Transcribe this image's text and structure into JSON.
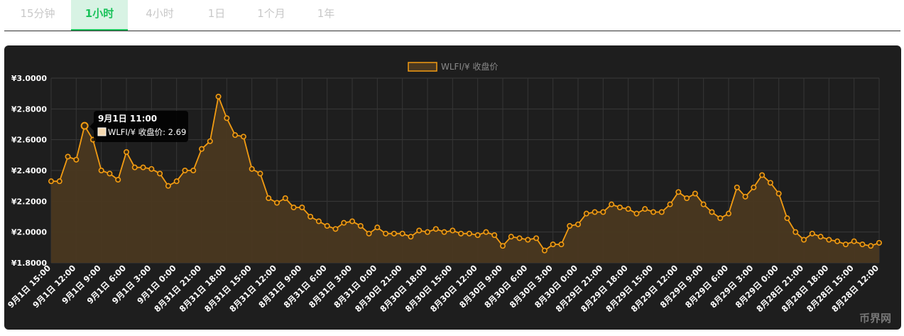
{
  "tabs": [
    {
      "label": "15分钟",
      "active": false
    },
    {
      "label": "1小时",
      "active": true
    },
    {
      "label": "4小时",
      "active": false
    },
    {
      "label": "1日",
      "active": false
    },
    {
      "label": "1个月",
      "active": false
    },
    {
      "label": "1年",
      "active": false
    }
  ],
  "colors": {
    "line": "#f39c12",
    "fill": "#4a3820",
    "accent": "#19c25a",
    "panel": "#1e1e1e"
  },
  "tooltip": {
    "title": "9月1日 11:00",
    "body": "WLFI/¥ 收盘价: 2.69"
  },
  "watermark": "币界网",
  "chart_data": {
    "type": "area",
    "legend": "WLFI/¥ 收盘价",
    "legend_position": "top-center",
    "grid": true,
    "ylim": [
      1.8,
      3.0
    ],
    "y_ticks": [
      "¥3.0000",
      "¥2.8000",
      "¥2.6000",
      "¥2.4000",
      "¥2.2000",
      "¥2.0000",
      "¥1.8000"
    ],
    "x_tick_labels": [
      "9月1日 15:00",
      "9月1日 12:00",
      "9月1日 9:00",
      "9月1日 6:00",
      "9月1日 3:00",
      "9月1日 0:00",
      "8月31日 21:00",
      "8月31日 18:00",
      "8月31日 15:00",
      "8月31日 12:00",
      "8月31日 9:00",
      "8月31日 6:00",
      "8月31日 3:00",
      "8月31日 0:00",
      "8月30日 21:00",
      "8月30日 18:00",
      "8月30日 15:00",
      "8月30日 12:00",
      "8月30日 9:00",
      "8月30日 6:00",
      "8月30日 3:00",
      "8月30日 0:00",
      "8月29日 21:00",
      "8月29日 18:00",
      "8月29日 15:00",
      "8月29日 12:00",
      "8月29日 9:00",
      "8月29日 6:00",
      "8月29日 3:00",
      "8月29日 0:00",
      "8月28日 21:00",
      "8月28日 18:00",
      "8月28日 15:00",
      "8月28日 12:00"
    ],
    "series": [
      {
        "name": "WLFI/¥ 收盘价",
        "values": [
          2.33,
          2.33,
          2.49,
          2.47,
          2.69,
          2.6,
          2.4,
          2.38,
          2.34,
          2.52,
          2.42,
          2.42,
          2.41,
          2.38,
          2.3,
          2.33,
          2.4,
          2.4,
          2.54,
          2.59,
          2.88,
          2.74,
          2.63,
          2.62,
          2.41,
          2.38,
          2.22,
          2.19,
          2.22,
          2.16,
          2.16,
          2.1,
          2.07,
          2.04,
          2.02,
          2.06,
          2.07,
          2.04,
          1.99,
          2.03,
          1.99,
          1.99,
          1.99,
          1.97,
          2.01,
          2.0,
          2.02,
          2.0,
          2.01,
          1.99,
          1.99,
          1.98,
          2.0,
          1.98,
          1.91,
          1.97,
          1.96,
          1.95,
          1.96,
          1.88,
          1.92,
          1.92,
          2.04,
          2.05,
          2.12,
          2.13,
          2.13,
          2.18,
          2.16,
          2.15,
          2.12,
          2.15,
          2.13,
          2.13,
          2.18,
          2.26,
          2.22,
          2.25,
          2.18,
          2.13,
          2.09,
          2.12,
          2.29,
          2.23,
          2.29,
          2.37,
          2.32,
          2.25,
          2.09,
          2.0,
          1.95,
          1.99,
          1.97,
          1.95,
          1.94,
          1.92,
          1.94,
          1.92,
          1.91,
          1.93
        ]
      }
    ]
  }
}
